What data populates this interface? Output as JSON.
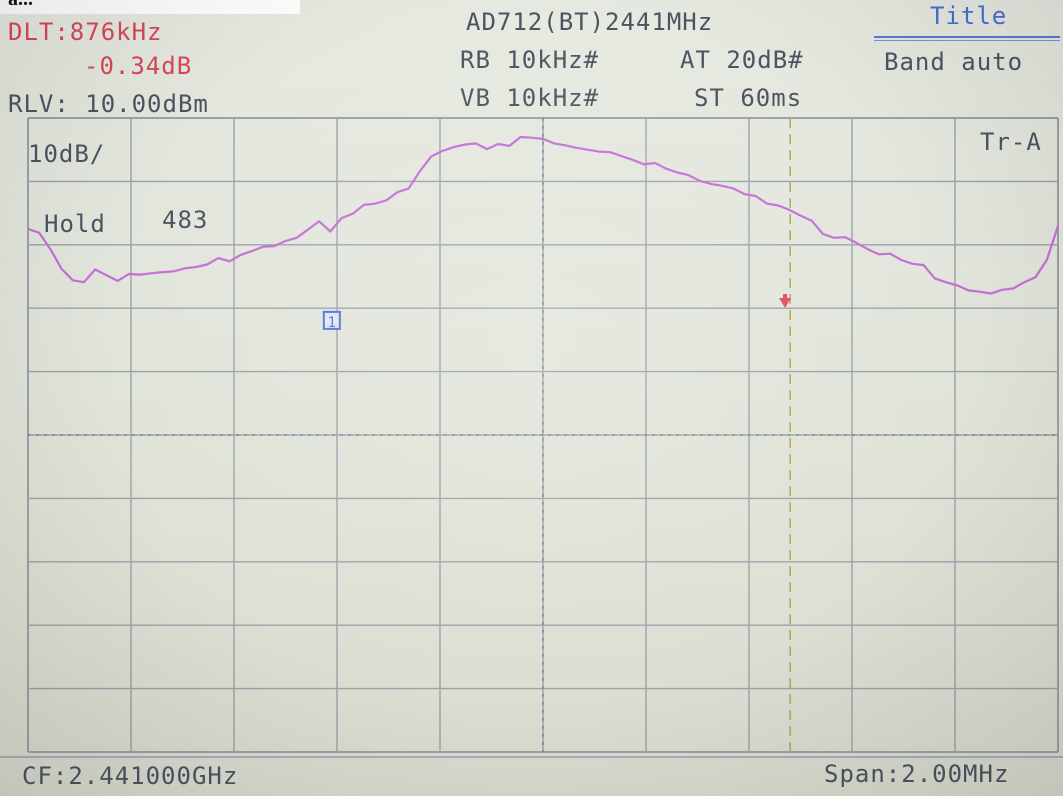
{
  "top_strip_text": "a...",
  "header": {
    "delta_freq": "DLT:876kHz",
    "delta_level": "-0.34dB",
    "ref_level": "RLV: 10.00dBm",
    "device": "AD712(BT)2441MHz",
    "rbw": "RB 10kHz#",
    "vbw": "VB 10kHz#",
    "attenuation": "AT 20dB#",
    "sweep_time": "ST 60ms",
    "title_button": "Title",
    "band_mode": "Band auto"
  },
  "plot": {
    "scale": "10dB/",
    "trace": "Tr-A",
    "hold_label": "Hold",
    "hold_count": "483",
    "marker_1_label": "1",
    "trace_color": "#c46fd6",
    "grid_color": "#9aa2aa",
    "marker_box_color": "#4a72d8",
    "delta_marker_color": "#e34a5b"
  },
  "footer": {
    "center_freq": "CF:2.441000GHz",
    "span": "Span:2.00MHz"
  },
  "chart_data": {
    "type": "line",
    "x_divisions": 10,
    "y_divisions": 10,
    "series": [
      {
        "values": [
          -17.5,
          -18.1,
          -20.7,
          -23.8,
          -25.6,
          -25.9,
          -23.9,
          -24.8,
          -25.7,
          -24.6,
          -24.7,
          -24.5,
          -24.3,
          -24.2,
          -23.7,
          -23.5,
          -23.1,
          -22.1,
          -22.6,
          -21.6,
          -21.0,
          -20.3,
          -20.2,
          -19.4,
          -18.9,
          -17.6,
          -16.3,
          -17.9,
          -15.8,
          -15.1,
          -13.7,
          -13.5,
          -13.0,
          -11.7,
          -11.1,
          -8.4,
          -6.1,
          -5.2,
          -4.6,
          -4.2,
          -4.0,
          -4.9,
          -4.1,
          -4.4,
          -3.0,
          -3.1,
          -3.3,
          -4.0,
          -4.3,
          -4.7,
          -5.0,
          -5.3,
          -5.4,
          -6.0,
          -6.6,
          -7.3,
          -7.1,
          -8.0,
          -8.6,
          -9.0,
          -9.9,
          -10.4,
          -10.7,
          -11.1,
          -12.0,
          -12.3,
          -13.5,
          -13.8,
          -14.5,
          -15.4,
          -16.2,
          -18.3,
          -18.9,
          -18.8,
          -19.7,
          -20.7,
          -21.5,
          -21.4,
          -22.4,
          -23.0,
          -23.2,
          -25.3,
          -25.9,
          -26.4,
          -27.2,
          -27.4,
          -27.7,
          -27.1,
          -26.9,
          -25.9,
          -25.1,
          -22.4,
          -17.0
        ]
      }
    ],
    "reference_lines": {
      "horizontal_dotted_at_div": 5.0,
      "center_dotted_at_div": 5.0,
      "delta_marker_at_div": 7.4
    },
    "markers": [
      {
        "label": "1",
        "x_div": 2.95,
        "y_div": 3.2
      },
      {
        "label": "delta",
        "x_div": 7.35,
        "y_div": 2.95
      }
    ],
    "grid": true
  }
}
